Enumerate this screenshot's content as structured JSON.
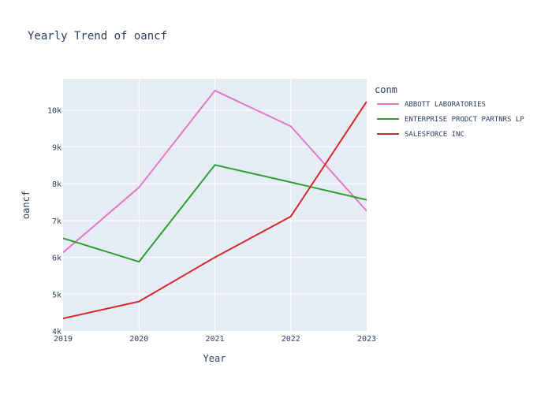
{
  "chart_data": {
    "type": "line",
    "title": "Yearly Trend of oancf",
    "xlabel": "Year",
    "ylabel": "oancf",
    "x": [
      2019,
      2020,
      2021,
      2022,
      2023
    ],
    "x_tick_labels": [
      "2019",
      "2020",
      "2021",
      "2022",
      "2023"
    ],
    "xlim": [
      2019,
      2023
    ],
    "y_ticks": [
      4000,
      5000,
      6000,
      7000,
      8000,
      9000,
      10000
    ],
    "y_tick_labels": [
      "4k",
      "5k",
      "6k",
      "7k",
      "8k",
      "9k",
      "10k"
    ],
    "ylim": [
      4000,
      10850
    ],
    "grid": true,
    "legend": {
      "title": "conm",
      "placement": "top-right"
    },
    "series": [
      {
        "name": "ABBOTT LABORATORIES",
        "color": "#e377c2",
        "values": [
          6130,
          7900,
          10530,
          9560,
          7260
        ]
      },
      {
        "name": "ENTERPRISE PRODCT PARTNRS LP",
        "color": "#2ca02c",
        "values": [
          6520,
          5880,
          8510,
          8040,
          7560
        ]
      },
      {
        "name": "SALESFORCE INC",
        "color": "#d62728",
        "values": [
          4340,
          4800,
          6000,
          7110,
          10230
        ]
      }
    ]
  }
}
